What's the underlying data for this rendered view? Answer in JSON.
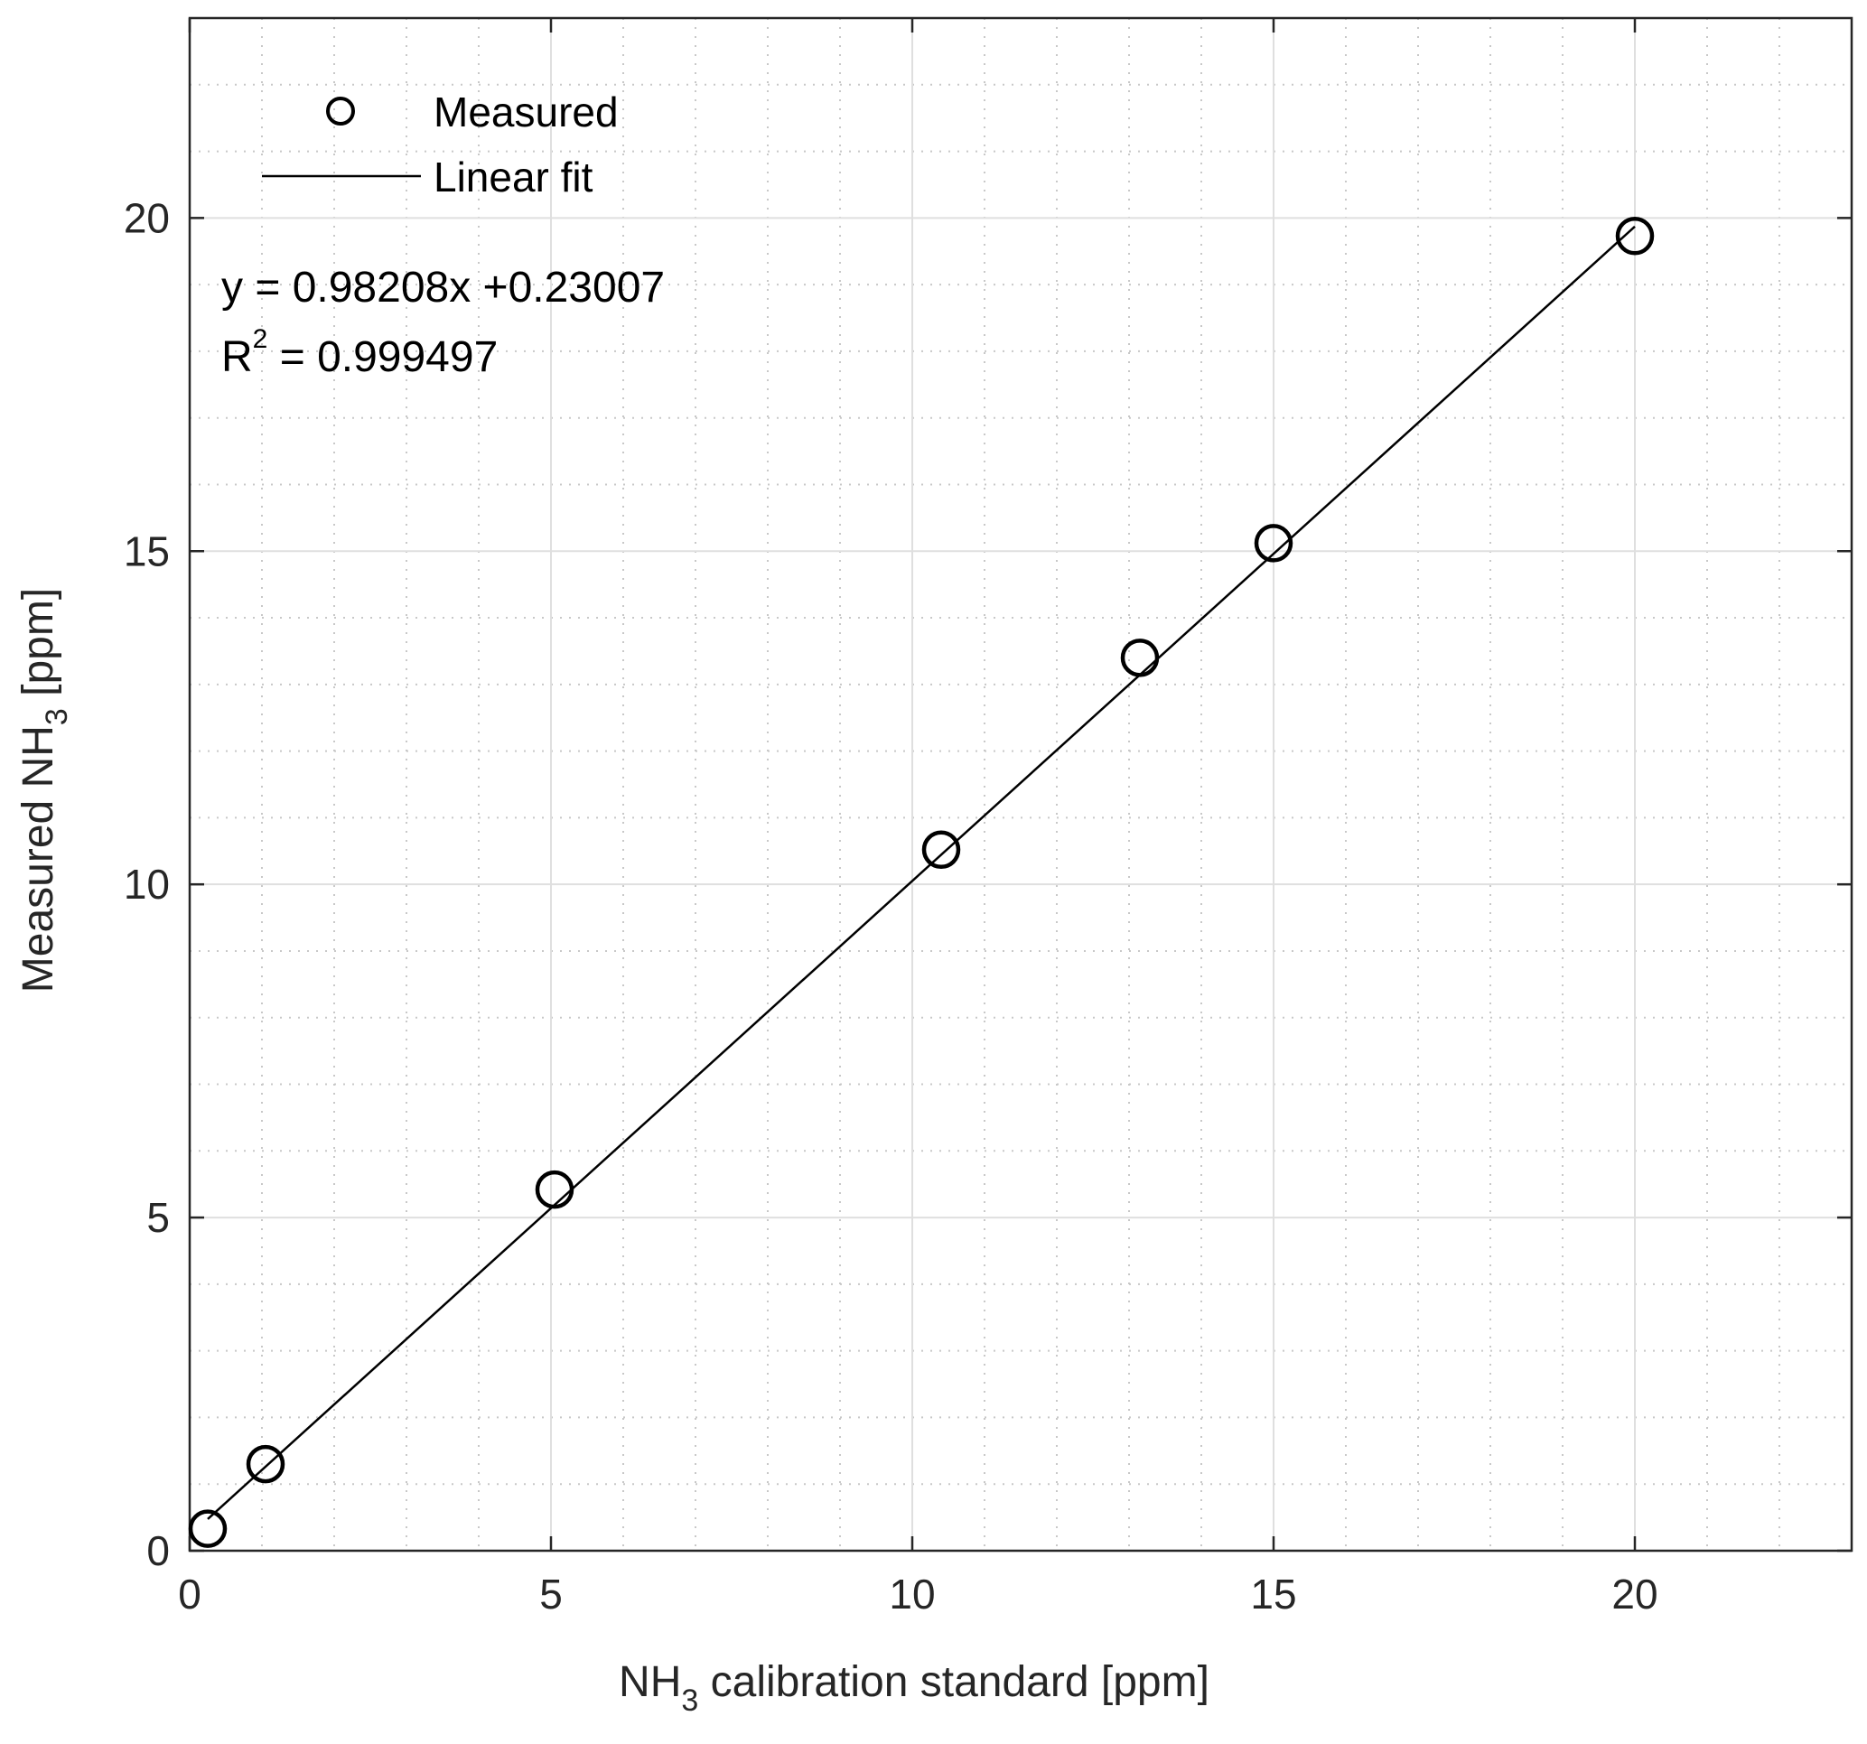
{
  "chart_data": {
    "type": "scatter",
    "xlabel": {
      "prefix": "NH",
      "sub": "3",
      "suffix": " calibration standard [ppm]"
    },
    "ylabel": {
      "prefix": "Measured NH",
      "sub": "3",
      "suffix": " [ppm]"
    },
    "xlim": [
      0,
      23
    ],
    "ylim": [
      0,
      23
    ],
    "x_ticks": [
      0,
      5,
      10,
      15,
      20
    ],
    "y_ticks": [
      0,
      5,
      10,
      15,
      20
    ],
    "x_tick_labels": [
      "0",
      "5",
      "10",
      "15",
      "20"
    ],
    "y_tick_labels": [
      "0",
      "5",
      "10",
      "15",
      "20"
    ],
    "grid": true,
    "minor_grid": true,
    "legend_position": "top-left",
    "series": [
      {
        "name": "Measured",
        "kind": "scatter",
        "marker": "open-circle",
        "color": "#000000",
        "x": [
          0.25,
          1.05,
          5.05,
          10.4,
          13.15,
          15.0,
          20.0
        ],
        "y": [
          0.33,
          1.3,
          5.42,
          10.52,
          13.4,
          15.12,
          19.73
        ]
      },
      {
        "name": "Linear fit",
        "kind": "line",
        "color": "#000000",
        "x": [
          0.25,
          20.0
        ],
        "y": [
          0.4756,
          19.8717
        ]
      }
    ],
    "annotations": {
      "equation": "y = 0.98208x +0.23007",
      "r2_base": "R",
      "r2_exp": "2",
      "r2_value": " = 0.999497"
    }
  },
  "colors": {
    "axis": "#262626",
    "major_grid": "#dfdfdf",
    "minor_grid": "#c8c8c8",
    "marker": "#000000"
  }
}
